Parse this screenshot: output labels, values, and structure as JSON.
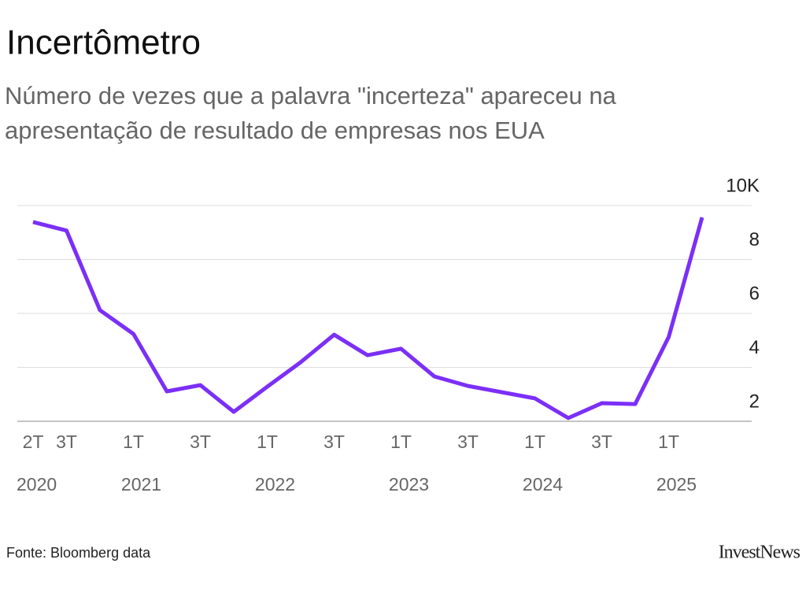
{
  "chart_data": {
    "type": "line",
    "title": "Incertômetro",
    "subtitle": "Número de vezes que a palavra \"incerteza\" apareceu na apresentação de resultado de empresas nos EUA",
    "categories": [
      "2T",
      "3T",
      null,
      "1T",
      null,
      "3T",
      null,
      "1T",
      null,
      "3T",
      null,
      "1T",
      null,
      "3T",
      null,
      "1T",
      null,
      "3T",
      null,
      "1T",
      null
    ],
    "years": [
      "2020",
      null,
      null,
      "2021",
      null,
      null,
      null,
      "2022",
      null,
      null,
      null,
      "2023",
      null,
      null,
      null,
      "2024",
      null,
      null,
      null,
      "2025",
      null
    ],
    "values": [
      9.39,
      9.07,
      6.12,
      5.24,
      3.11,
      3.34,
      2.35,
      3.28,
      4.19,
      5.21,
      4.45,
      4.69,
      3.66,
      3.31,
      3.08,
      2.85,
      2.12,
      2.67,
      2.64,
      5.12,
      9.56
    ],
    "color": "#7b2ff7",
    "ylim": [
      2,
      10
    ],
    "yticks": [
      2,
      4,
      6,
      8,
      {
        "value": 10,
        "label": "10K"
      }
    ],
    "grid": true,
    "source": "Fonte: Bloomberg data",
    "brand": "InvestNews"
  }
}
